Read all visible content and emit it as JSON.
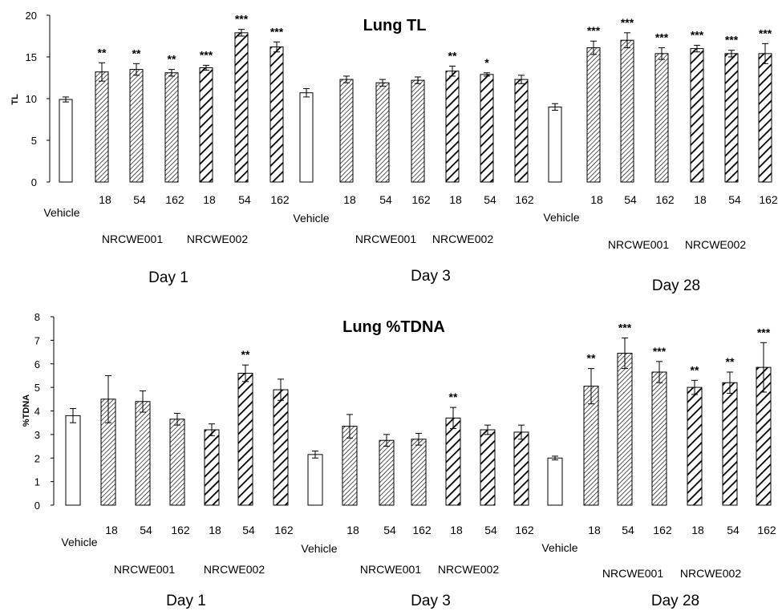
{
  "chart_data": [
    {
      "type": "bar",
      "title": "Lung TL",
      "ylabel": "TL",
      "ylim": [
        0,
        20
      ],
      "yticks": [
        0,
        5,
        10,
        15,
        20
      ],
      "grid": false,
      "bars": [
        {
          "label": "Vehicle",
          "day": "Day 1",
          "group": "",
          "value": 9.9,
          "error": 0.3,
          "sig": "",
          "pattern": "open"
        },
        {
          "label": "18",
          "day": "Day 1",
          "group": "NRCWE001",
          "value": 13.2,
          "error": 1.1,
          "sig": "**",
          "pattern": "fine"
        },
        {
          "label": "54",
          "day": "Day 1",
          "group": "NRCWE001",
          "value": 13.5,
          "error": 0.7,
          "sig": "**",
          "pattern": "fine"
        },
        {
          "label": "162",
          "day": "Day 1",
          "group": "NRCWE001",
          "value": 13.1,
          "error": 0.4,
          "sig": "**",
          "pattern": "fine"
        },
        {
          "label": "18",
          "day": "Day 1",
          "group": "NRCWE002",
          "value": 13.7,
          "error": 0.3,
          "sig": "***",
          "pattern": "bold"
        },
        {
          "label": "54",
          "day": "Day 1",
          "group": "NRCWE002",
          "value": 17.9,
          "error": 0.4,
          "sig": "***",
          "pattern": "bold"
        },
        {
          "label": "162",
          "day": "Day 1",
          "group": "NRCWE002",
          "value": 16.2,
          "error": 0.6,
          "sig": "***",
          "pattern": "bold"
        },
        {
          "label": "Vehicle",
          "day": "Day 3",
          "group": "",
          "value": 10.7,
          "error": 0.5,
          "sig": "",
          "pattern": "open"
        },
        {
          "label": "18",
          "day": "Day 3",
          "group": "NRCWE001",
          "value": 12.3,
          "error": 0.4,
          "sig": "",
          "pattern": "fine"
        },
        {
          "label": "54",
          "day": "Day 3",
          "group": "NRCWE001",
          "value": 11.9,
          "error": 0.4,
          "sig": "",
          "pattern": "fine"
        },
        {
          "label": "162",
          "day": "Day 3",
          "group": "NRCWE001",
          "value": 12.2,
          "error": 0.4,
          "sig": "",
          "pattern": "fine"
        },
        {
          "label": "18",
          "day": "Day 3",
          "group": "NRCWE002",
          "value": 13.3,
          "error": 0.6,
          "sig": "**",
          "pattern": "bold"
        },
        {
          "label": "54",
          "day": "Day 3",
          "group": "NRCWE002",
          "value": 12.9,
          "error": 0.2,
          "sig": "*",
          "pattern": "bold"
        },
        {
          "label": "162",
          "day": "Day 3",
          "group": "NRCWE002",
          "value": 12.3,
          "error": 0.5,
          "sig": "",
          "pattern": "bold"
        },
        {
          "label": "Vehicle",
          "day": "Day 28",
          "group": "",
          "value": 9.0,
          "error": 0.4,
          "sig": "",
          "pattern": "open"
        },
        {
          "label": "18",
          "day": "Day 28",
          "group": "NRCWE001",
          "value": 16.1,
          "error": 0.8,
          "sig": "***",
          "pattern": "fine"
        },
        {
          "label": "54",
          "day": "Day 28",
          "group": "NRCWE001",
          "value": 17.0,
          "error": 0.9,
          "sig": "***",
          "pattern": "fine"
        },
        {
          "label": "162",
          "day": "Day 28",
          "group": "NRCWE001",
          "value": 15.4,
          "error": 0.7,
          "sig": "***",
          "pattern": "fine"
        },
        {
          "label": "18",
          "day": "Day 28",
          "group": "NRCWE002",
          "value": 16.0,
          "error": 0.4,
          "sig": "***",
          "pattern": "bold"
        },
        {
          "label": "54",
          "day": "Day 28",
          "group": "NRCWE002",
          "value": 15.4,
          "error": 0.4,
          "sig": "***",
          "pattern": "bold"
        },
        {
          "label": "162",
          "day": "Day 28",
          "group": "NRCWE002",
          "value": 15.4,
          "error": 1.2,
          "sig": "***",
          "pattern": "bold"
        }
      ]
    },
    {
      "type": "bar",
      "title": "Lung %TDNA",
      "ylabel": "%TDNA",
      "ylim": [
        0,
        8
      ],
      "yticks": [
        0,
        1,
        2,
        3,
        4,
        5,
        6,
        7,
        8
      ],
      "grid": false,
      "bars": [
        {
          "label": "Vehicle",
          "day": "Day 1",
          "group": "",
          "value": 3.8,
          "error": 0.3,
          "sig": "",
          "pattern": "open"
        },
        {
          "label": "18",
          "day": "Day 1",
          "group": "NRCWE001",
          "value": 4.5,
          "error": 1.0,
          "sig": "",
          "pattern": "fine"
        },
        {
          "label": "54",
          "day": "Day 1",
          "group": "NRCWE001",
          "value": 4.4,
          "error": 0.45,
          "sig": "",
          "pattern": "fine"
        },
        {
          "label": "162",
          "day": "Day 1",
          "group": "NRCWE001",
          "value": 3.65,
          "error": 0.25,
          "sig": "",
          "pattern": "fine"
        },
        {
          "label": "18",
          "day": "Day 1",
          "group": "NRCWE002",
          "value": 3.2,
          "error": 0.25,
          "sig": "",
          "pattern": "bold"
        },
        {
          "label": "54",
          "day": "Day 1",
          "group": "NRCWE002",
          "value": 5.6,
          "error": 0.35,
          "sig": "**",
          "pattern": "bold"
        },
        {
          "label": "162",
          "day": "Day 1",
          "group": "NRCWE002",
          "value": 4.9,
          "error": 0.45,
          "sig": "",
          "pattern": "bold"
        },
        {
          "label": "Vehicle",
          "day": "Day 3",
          "group": "",
          "value": 2.15,
          "error": 0.15,
          "sig": "",
          "pattern": "open"
        },
        {
          "label": "18",
          "day": "Day 3",
          "group": "NRCWE001",
          "value": 3.35,
          "error": 0.5,
          "sig": "",
          "pattern": "fine"
        },
        {
          "label": "54",
          "day": "Day 3",
          "group": "NRCWE001",
          "value": 2.75,
          "error": 0.25,
          "sig": "",
          "pattern": "fine"
        },
        {
          "label": "162",
          "day": "Day 3",
          "group": "NRCWE001",
          "value": 2.8,
          "error": 0.25,
          "sig": "",
          "pattern": "fine"
        },
        {
          "label": "18",
          "day": "Day 3",
          "group": "NRCWE002",
          "value": 3.7,
          "error": 0.45,
          "sig": "**",
          "pattern": "bold"
        },
        {
          "label": "54",
          "day": "Day 3",
          "group": "NRCWE002",
          "value": 3.2,
          "error": 0.2,
          "sig": "",
          "pattern": "bold"
        },
        {
          "label": "162",
          "day": "Day 3",
          "group": "NRCWE002",
          "value": 3.1,
          "error": 0.3,
          "sig": "",
          "pattern": "bold"
        },
        {
          "label": "Vehicle",
          "day": "Day 28",
          "group": "",
          "value": 2.0,
          "error": 0.08,
          "sig": "",
          "pattern": "open"
        },
        {
          "label": "18",
          "day": "Day 28",
          "group": "NRCWE001",
          "value": 5.05,
          "error": 0.75,
          "sig": "**",
          "pattern": "fine"
        },
        {
          "label": "54",
          "day": "Day 28",
          "group": "NRCWE001",
          "value": 6.45,
          "error": 0.65,
          "sig": "***",
          "pattern": "fine"
        },
        {
          "label": "162",
          "day": "Day 28",
          "group": "NRCWE001",
          "value": 5.65,
          "error": 0.45,
          "sig": "***",
          "pattern": "fine"
        },
        {
          "label": "18",
          "day": "Day 28",
          "group": "NRCWE002",
          "value": 5.0,
          "error": 0.3,
          "sig": "**",
          "pattern": "bold"
        },
        {
          "label": "54",
          "day": "Day 28",
          "group": "NRCWE002",
          "value": 5.2,
          "error": 0.45,
          "sig": "**",
          "pattern": "bold"
        },
        {
          "label": "162",
          "day": "Day 28",
          "group": "NRCWE002",
          "value": 5.85,
          "error": 1.05,
          "sig": "***",
          "pattern": "bold"
        }
      ]
    }
  ],
  "colors": {
    "bar_stroke": "#000000",
    "open_fill": "#ffffff",
    "hatch": "#000000"
  }
}
